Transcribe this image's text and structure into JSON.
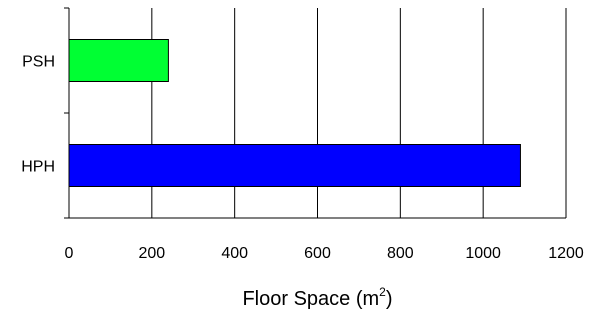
{
  "chart_data": {
    "type": "bar",
    "orientation": "horizontal",
    "categories": [
      "PSH",
      "HPH"
    ],
    "values": [
      240,
      1090
    ],
    "colors": [
      "#00ff33",
      "#0000ff"
    ],
    "xlim": [
      0,
      1200
    ],
    "xticks": [
      0,
      200,
      400,
      600,
      800,
      1000,
      1200
    ],
    "xlabel": "Floor Space (m",
    "xlabel_superscript": "2",
    "xlabel_suffix": ")",
    "ylabel": "",
    "title": "",
    "grid": "vertical"
  }
}
